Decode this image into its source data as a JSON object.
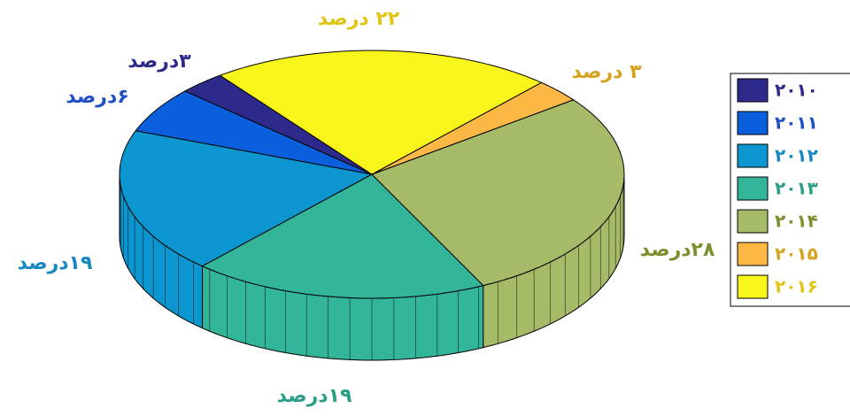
{
  "chart_data": {
    "type": "pie3d",
    "categories": [
      "۲۰۱۰",
      "۲۰۱۱",
      "۲۰۱۲",
      "۲۰۱۳",
      "۲۰۱۴",
      "۲۰۱۵",
      "۲۰۱۶"
    ],
    "values": [
      3,
      6,
      19,
      19,
      28,
      3,
      22
    ],
    "value_labels": [
      "۳درصد",
      "۶درصد",
      "۱۹درصد",
      "۱۹درصد",
      "۲۸درصد",
      "۳ درصد",
      "۲۲ درصد"
    ],
    "colors": [
      "#2e2a8c",
      "#0a5fdc",
      "#0b96d0",
      "#33b59a",
      "#a5bb68",
      "#fbb845",
      "#f8f51b"
    ],
    "label_colors": [
      "#2e2a8c",
      "#1f4fc4",
      "#1489c0",
      "#2a9e86",
      "#7a8f2e",
      "#d8a21e",
      "#e2c414"
    ],
    "legend": "right"
  }
}
